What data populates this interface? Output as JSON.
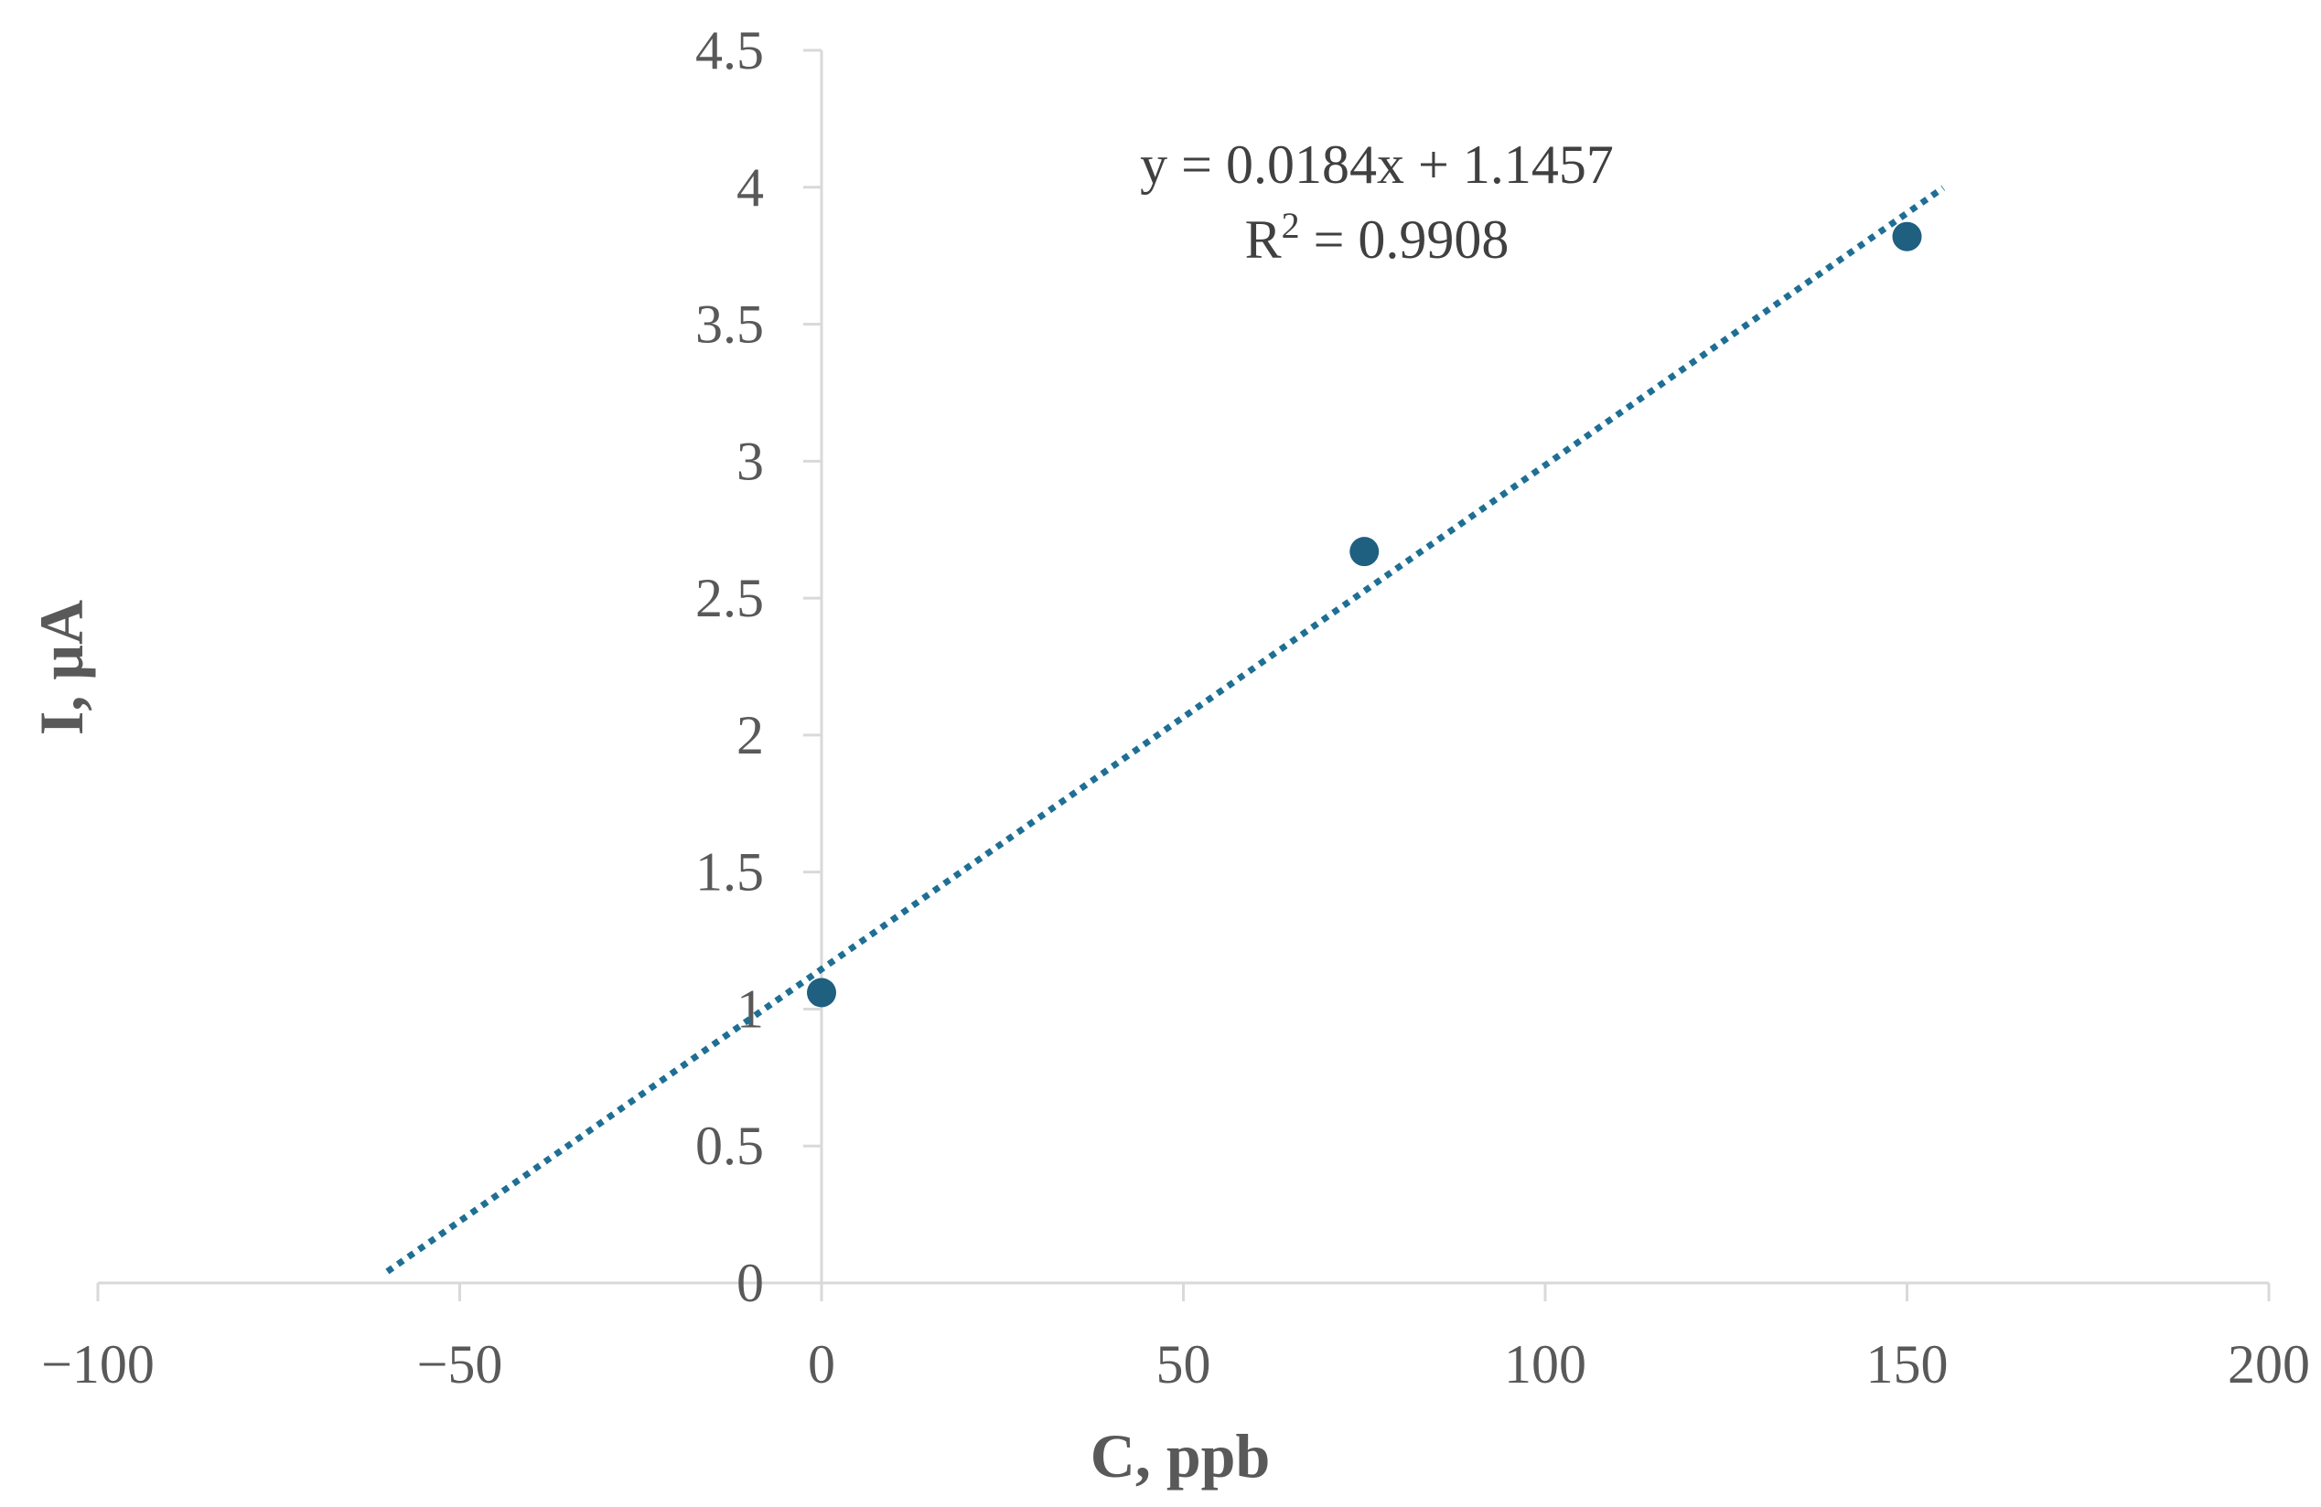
{
  "chart_data": {
    "type": "scatter",
    "xlabel": "C, ppb",
    "ylabel": "I, μA",
    "xlim": [
      -100,
      200
    ],
    "ylim": [
      0,
      4.5
    ],
    "x_ticks": [
      -100,
      -50,
      0,
      50,
      100,
      150,
      200
    ],
    "x_tick_labels": [
      "−100",
      "−50",
      "0",
      "50",
      "100",
      "150",
      "200"
    ],
    "y_ticks": [
      0,
      0.5,
      1,
      1.5,
      2,
      2.5,
      3,
      3.5,
      4,
      4.5
    ],
    "y_tick_labels": [
      "0",
      "0.5",
      "1",
      "1.5",
      "2",
      "2.5",
      "3",
      "3.5",
      "4",
      "4.5"
    ],
    "grid": false,
    "series": [
      {
        "x": [
          0,
          75,
          150
        ],
        "y": [
          1.06,
          2.67,
          3.82
        ],
        "color": "#1f5f80"
      }
    ],
    "trendline": {
      "slope": 0.0184,
      "intercept": 1.1457,
      "x_range": [
        -60,
        155
      ],
      "style": "dotted",
      "color": "#1f6f94"
    },
    "annotations": {
      "equation": "y = 0.0184x + 1.1457",
      "r2_prefix": "R",
      "r2_sup": "2",
      "r2_value": " = 0.9908"
    }
  }
}
